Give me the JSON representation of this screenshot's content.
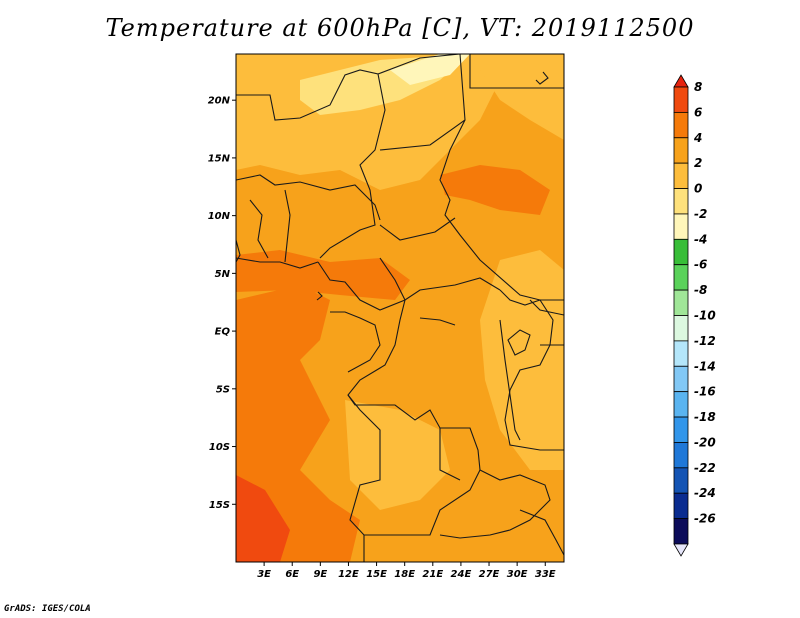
{
  "title": "Temperature at 600hPa [C], VT: 2019112500",
  "credit": "GrADS: IGES/COLA",
  "map": {
    "lon_range": [
      0,
      35
    ],
    "lat_range": [
      -20,
      24
    ],
    "lat_ticks": [
      {
        "value": 20,
        "label": "20N"
      },
      {
        "value": 15,
        "label": "15N"
      },
      {
        "value": 10,
        "label": "10N"
      },
      {
        "value": 5,
        "label": "5N"
      },
      {
        "value": 0,
        "label": "EQ"
      },
      {
        "value": -5,
        "label": "5S"
      },
      {
        "value": -10,
        "label": "10S"
      },
      {
        "value": -15,
        "label": "15S"
      }
    ],
    "lon_ticks": [
      {
        "value": 3,
        "label": "3E"
      },
      {
        "value": 6,
        "label": "6E"
      },
      {
        "value": 9,
        "label": "9E"
      },
      {
        "value": 12,
        "label": "12E"
      },
      {
        "value": 15,
        "label": "15E"
      },
      {
        "value": 18,
        "label": "18E"
      },
      {
        "value": 21,
        "label": "21E"
      },
      {
        "value": 24,
        "label": "24E"
      },
      {
        "value": 27,
        "label": "27E"
      },
      {
        "value": 30,
        "label": "30E"
      },
      {
        "value": 33,
        "label": "33E"
      }
    ]
  },
  "colorbar": {
    "levels": [
      "8",
      "6",
      "4",
      "2",
      "0",
      "-2",
      "-4",
      "-6",
      "-8",
      "-10",
      "-12",
      "-14",
      "-16",
      "-18",
      "-20",
      "-22",
      "-24",
      "-26"
    ],
    "colors": [
      "#e6230f",
      "#f04a0f",
      "#f57a0a",
      "#f7a21b",
      "#fdbd3c",
      "#fee17c",
      "#fff6ba",
      "#38be38",
      "#5ad25a",
      "#a0e698",
      "#dcf8e0",
      "#b4e6fa",
      "#82c8f5",
      "#5ab4f0",
      "#3296ea",
      "#1f78d8",
      "#1454b4",
      "#0a2c90",
      "#0c0c5a",
      "#e6e6fa"
    ]
  },
  "field_colors": {
    "lt0": "#fdbd3c",
    "band0": "#fee17c",
    "band2": "#f7a21b",
    "band4": "#f57a0a"
  }
}
